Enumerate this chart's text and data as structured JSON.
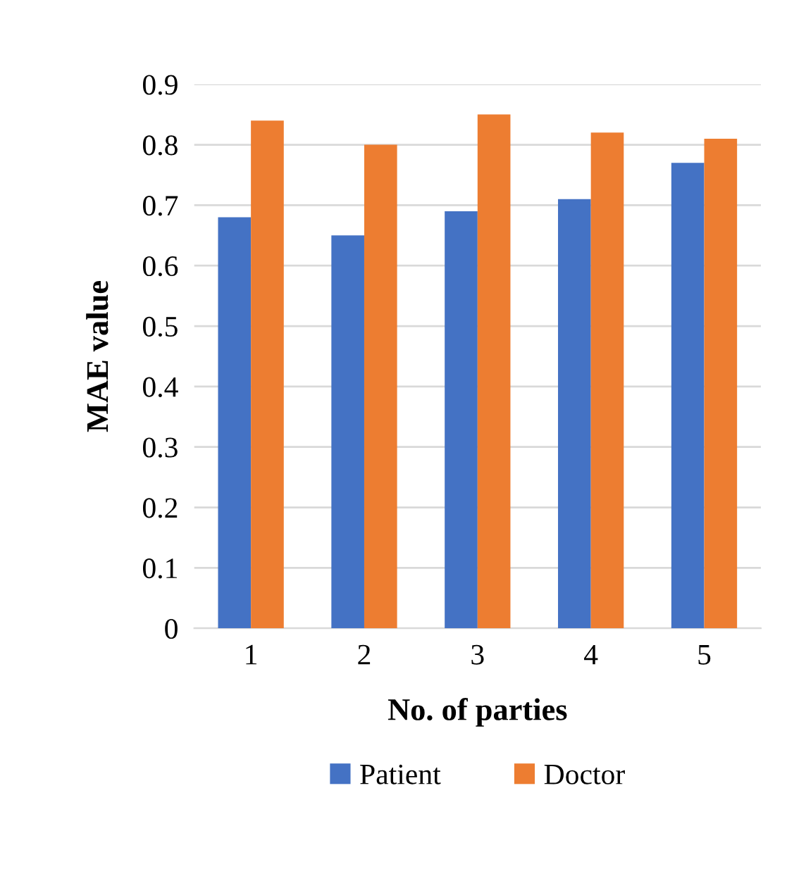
{
  "chart_data": {
    "type": "bar",
    "xlabel": "No. of parties",
    "ylabel": "MAE value",
    "categories": [
      "1",
      "2",
      "3",
      "4",
      "5"
    ],
    "series": [
      {
        "name": "Patient",
        "color": "#4472c4",
        "values": [
          0.68,
          0.65,
          0.69,
          0.71,
          0.77
        ]
      },
      {
        "name": "Doctor",
        "color": "#ed7d31",
        "values": [
          0.84,
          0.8,
          0.85,
          0.82,
          0.81
        ]
      }
    ],
    "ylim": [
      0,
      0.9
    ],
    "yticks": [
      0,
      0.1,
      0.2,
      0.3,
      0.4,
      0.5,
      0.6,
      0.7,
      0.8,
      0.9
    ],
    "grid": "y",
    "legend": "bottom"
  }
}
